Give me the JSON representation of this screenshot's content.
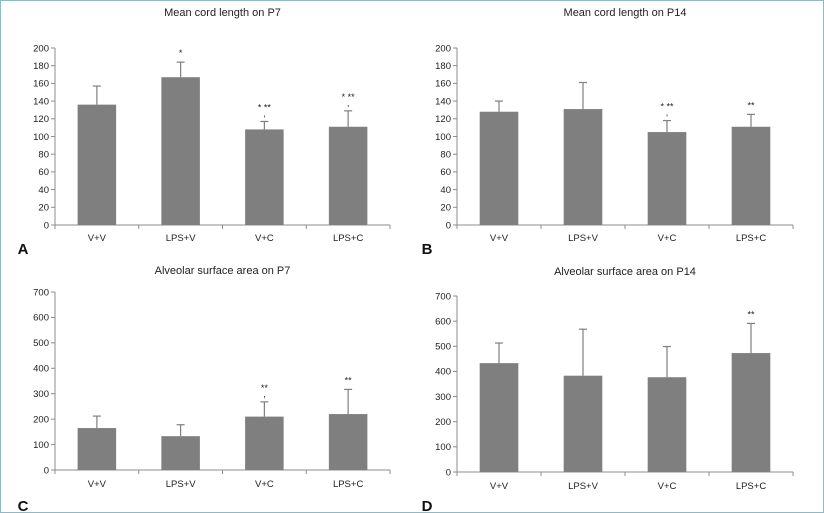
{
  "chart_data": [
    {
      "type": "bar",
      "panel_label": "A",
      "title": "Mean cord length on P7",
      "categories": [
        "V+V",
        "LPS+V",
        "V+C",
        "LPS+C"
      ],
      "values": [
        136,
        167,
        108,
        111
      ],
      "error": [
        21,
        17,
        9,
        18
      ],
      "annotations": [
        "",
        "*",
        "* **\n,",
        "* **\n,"
      ],
      "ylim": [
        0,
        200
      ],
      "yticks": [
        0,
        20,
        40,
        60,
        80,
        100,
        120,
        140,
        160,
        180,
        200
      ],
      "bar_color": "#7f7f7f"
    },
    {
      "type": "bar",
      "panel_label": "B",
      "title": "Mean cord length on P14",
      "categories": [
        "V+V",
        "LPS+V",
        "V+C",
        "LPS+C"
      ],
      "values": [
        128,
        131,
        105,
        111
      ],
      "error": [
        12,
        30,
        13,
        14
      ],
      "annotations": [
        "",
        "",
        "* **\n,",
        "**"
      ],
      "ylim": [
        0,
        200
      ],
      "yticks": [
        0,
        20,
        40,
        60,
        80,
        100,
        120,
        140,
        160,
        180,
        200
      ],
      "bar_color": "#7f7f7f"
    },
    {
      "type": "bar",
      "panel_label": "C",
      "title": "Alveolar surface area on P7",
      "categories": [
        "V+V",
        "LPS+V",
        "V+C",
        "LPS+C"
      ],
      "values": [
        165,
        133,
        210,
        220
      ],
      "error": [
        47,
        45,
        58,
        97
      ],
      "annotations": [
        "",
        "",
        "**\n,",
        "**"
      ],
      "ylim": [
        0,
        700
      ],
      "yticks": [
        0,
        100,
        200,
        300,
        400,
        500,
        600,
        700
      ],
      "bar_color": "#7f7f7f"
    },
    {
      "type": "bar",
      "panel_label": "D",
      "title": "Alveolar surface area on P14",
      "categories": [
        "V+V",
        "LPS+V",
        "V+C",
        "LPS+C"
      ],
      "values": [
        433,
        383,
        377,
        473
      ],
      "error": [
        80,
        185,
        122,
        118
      ],
      "annotations": [
        "",
        "",
        "",
        "**"
      ],
      "ylim": [
        0,
        700
      ],
      "yticks": [
        0,
        100,
        200,
        300,
        400,
        500,
        600,
        700
      ],
      "bar_color": "#7f7f7f"
    }
  ]
}
